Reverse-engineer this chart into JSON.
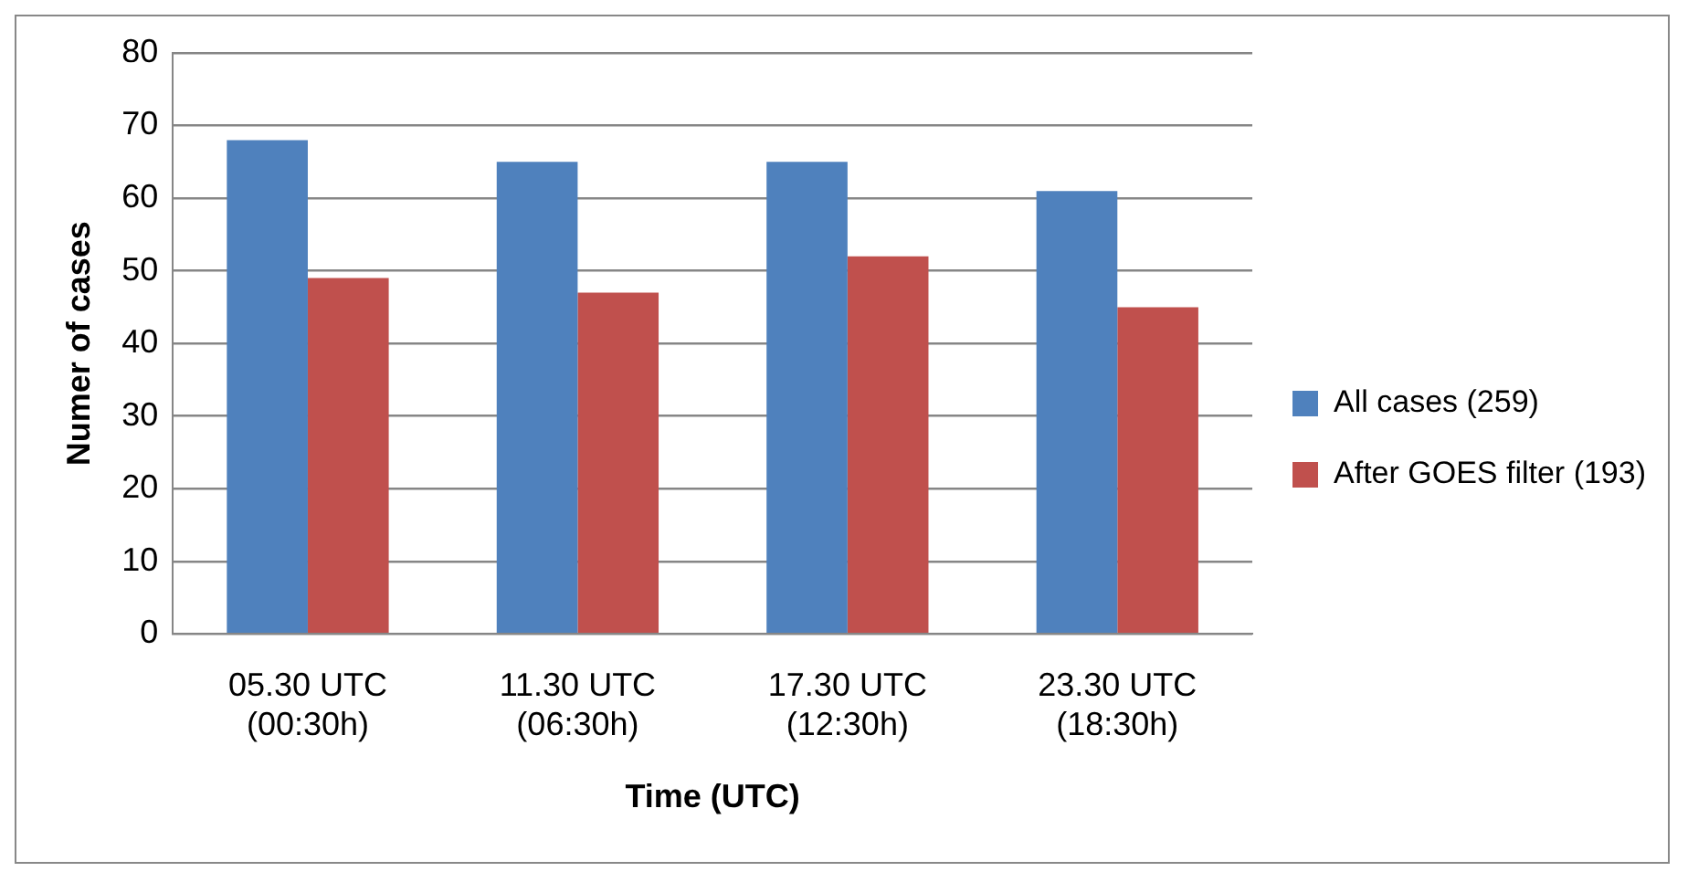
{
  "chart_data": {
    "type": "bar",
    "xlabel": "Time (UTC)",
    "ylabel": "Numer of cases",
    "categories": [
      "05.30 UTC (00:30h)",
      "11.30 UTC (06:30h)",
      "17.30 UTC (12:30h)",
      "23.30 UTC (18:30h)"
    ],
    "series": [
      {
        "name": "All cases (259)",
        "color": "#4f81bd",
        "values": [
          68,
          65,
          65,
          61
        ]
      },
      {
        "name": "After GOES filter (193)",
        "color": "#c0504d",
        "values": [
          49,
          47,
          52,
          45
        ]
      }
    ],
    "ylim": [
      0,
      80
    ],
    "yticks": [
      0,
      10,
      20,
      30,
      40,
      50,
      60,
      70,
      80
    ],
    "grid": "y",
    "legend": "right"
  }
}
